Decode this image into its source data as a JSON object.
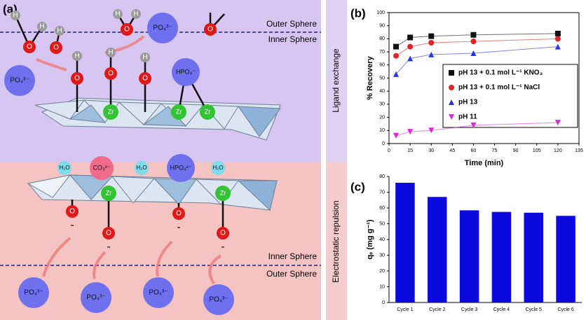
{
  "diagram": {
    "label": "(a)",
    "top_outer": "Outer Sphere",
    "top_inner": "Inner Sphere",
    "bottom_inner": "Inner Sphere",
    "bottom_outer": "Outer Sphere",
    "side_top": "Ligand exchange",
    "side_bottom": "Electrostatic repulsion",
    "nodes": [
      {
        "label": "H"
      },
      {
        "label": "H"
      },
      {
        "label": "O"
      },
      {
        "label": "O"
      },
      {
        "label": "H"
      },
      {
        "label": "O"
      },
      {
        "label": "H"
      },
      {
        "label": "H"
      },
      {
        "label": "O"
      },
      {
        "label": "PO₄³⁻"
      },
      {
        "label": "PO₄³⁻"
      },
      {
        "label": "H"
      },
      {
        "label": "O"
      },
      {
        "label": "H"
      },
      {
        "label": "O"
      },
      {
        "label": "H"
      },
      {
        "label": "O"
      },
      {
        "label": "HPO₄⁻"
      },
      {
        "label": "Zr"
      },
      {
        "label": "Zr"
      },
      {
        "label": "Zr"
      },
      {
        "label": "H₂O"
      },
      {
        "label": "CO₃²⁻"
      },
      {
        "label": "H₂O"
      },
      {
        "label": "HPO₄²⁻"
      },
      {
        "label": "H₂O"
      },
      {
        "label": "Zr"
      },
      {
        "label": "Zr"
      },
      {
        "label": "O"
      },
      {
        "label": "O"
      },
      {
        "label": "O"
      },
      {
        "label": "O"
      },
      {
        "label": "-"
      },
      {
        "label": "-"
      },
      {
        "label": "-"
      },
      {
        "label": "-"
      },
      {
        "label": "PO₄³⁻"
      },
      {
        "label": "PO₄³⁻"
      },
      {
        "label": "PO₄³⁻"
      },
      {
        "label": "PO₄³⁻"
      }
    ]
  },
  "chart_data": [
    {
      "type": "line",
      "panel": "(b)",
      "x_label": "Time (min)",
      "y_label": "% Recovery",
      "x": [
        5,
        15,
        30,
        60,
        120
      ],
      "xlim": [
        0,
        135
      ],
      "xticks": [
        0,
        15,
        30,
        45,
        60,
        75,
        90,
        105,
        120,
        135
      ],
      "ylim": [
        0,
        100
      ],
      "yticks": [
        0,
        10,
        20,
        30,
        40,
        50,
        60,
        70,
        80,
        90,
        100
      ],
      "legend": "center right",
      "series": [
        {
          "name": "pH 13 + 0.1 mol L⁻¹ KNO₃",
          "color": "#111111",
          "marker": "square",
          "values": [
            74,
            81,
            82,
            83,
            84
          ]
        },
        {
          "name": "pH 13 + 0.1 mol L⁻¹ NaCl",
          "color": "#e02424",
          "marker": "circle",
          "values": [
            67,
            74,
            77,
            78,
            80
          ]
        },
        {
          "name": "pH 13",
          "color": "#2636e0",
          "marker": "triangle",
          "values": [
            53,
            65,
            68,
            69,
            74
          ]
        },
        {
          "name": "pH 11",
          "color": "#e024e0",
          "marker": "triangle-down",
          "values": [
            6,
            9,
            10,
            14,
            16
          ]
        }
      ]
    },
    {
      "type": "bar",
      "panel": "(c)",
      "y_label": "qₑ (mg g⁻¹)",
      "categories": [
        "Cycle 1",
        "Cycle 2",
        "Cycle 3",
        "Cycle 4",
        "Cycle 5",
        "Cycle 6"
      ],
      "values": [
        76,
        67,
        58.5,
        57.5,
        57,
        55
      ],
      "color": "#0b0be0",
      "ylim": [
        0,
        80
      ],
      "yticks": [
        0,
        10,
        20,
        30,
        40,
        50,
        60,
        70,
        80
      ]
    }
  ]
}
